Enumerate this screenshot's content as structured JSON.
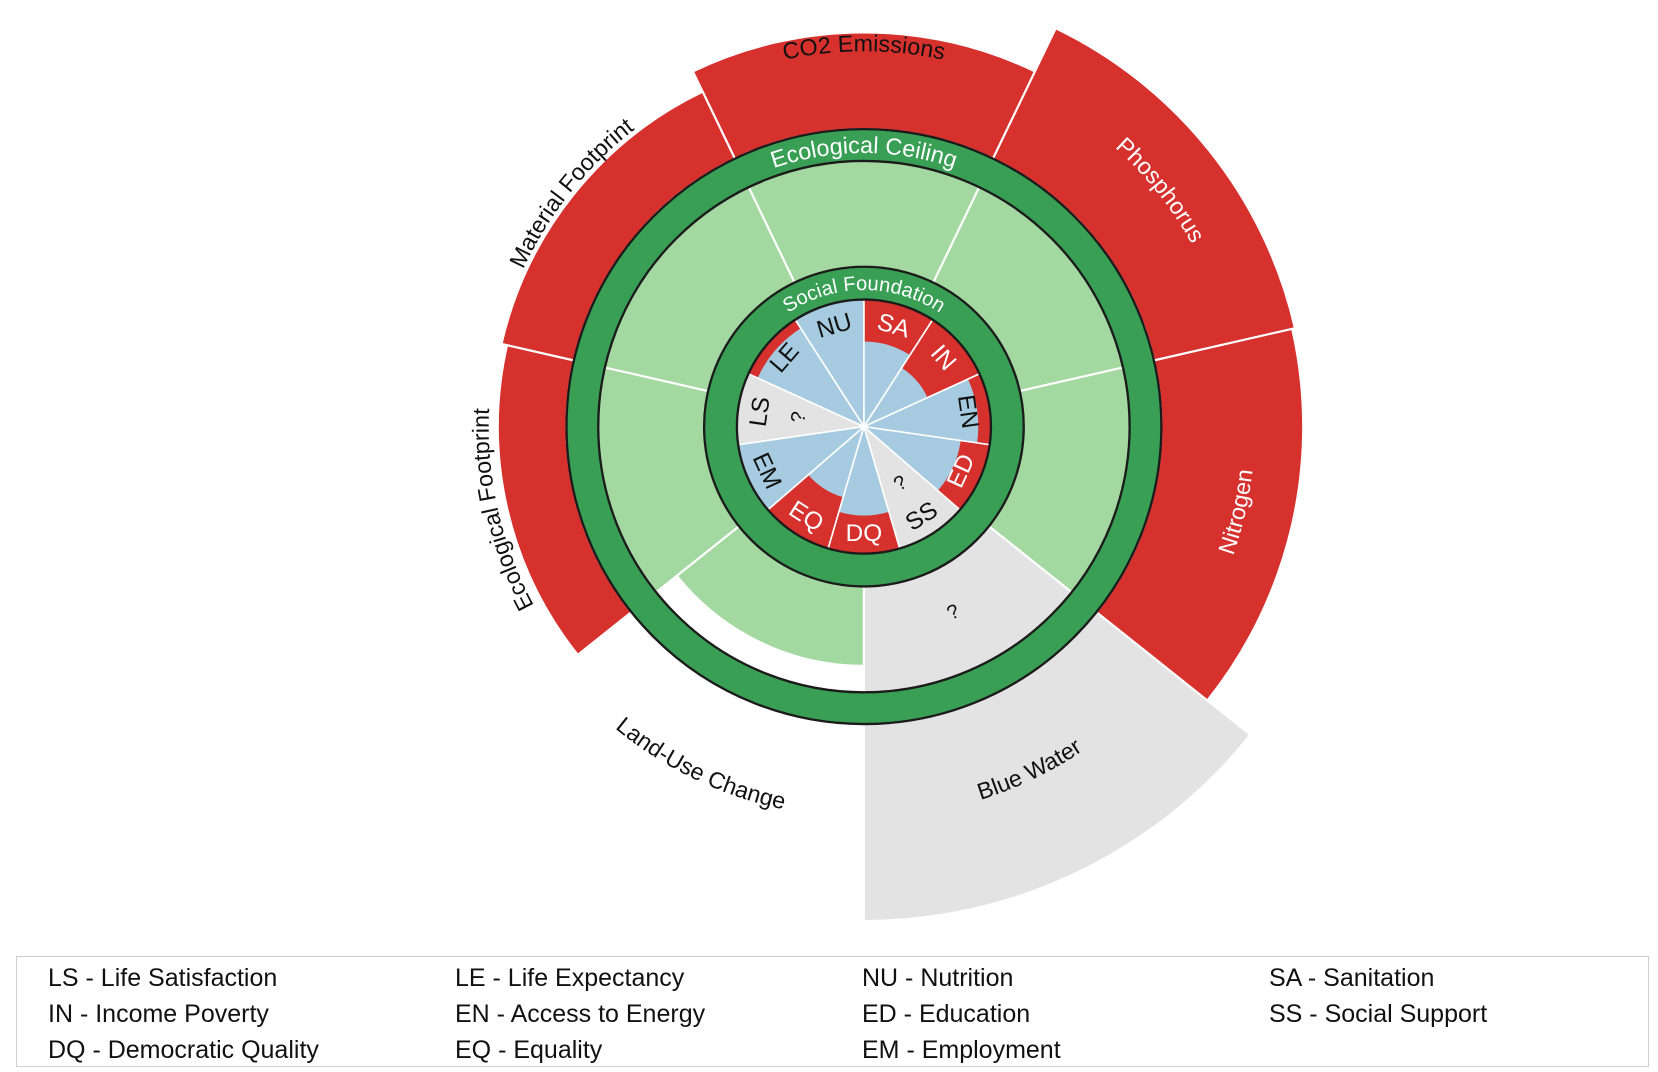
{
  "chart_data": {
    "type": "pie",
    "ceiling_label": "Ecological Ceiling",
    "foundation_label": "Social Foundation",
    "unknown_marker": "?",
    "ecological": [
      {
        "label": "CO2 Emissions",
        "value": 1.4
      },
      {
        "label": "Phosphorus",
        "value": 1.57
      },
      {
        "label": "Nitrogen",
        "value": 1.56
      },
      {
        "label": "Blue Water",
        "value": null
      },
      {
        "label": "Land-Use Change",
        "value": 0.85
      },
      {
        "label": "Ecological Footprint",
        "value": 1.3
      },
      {
        "label": "Material Footprint",
        "value": 1.32
      }
    ],
    "social": [
      {
        "code": "SA",
        "value": 0.67
      },
      {
        "code": "IN",
        "value": 0.55
      },
      {
        "code": "EN",
        "value": 0.9
      },
      {
        "code": "ED",
        "value": 0.77
      },
      {
        "code": "SS",
        "value": null
      },
      {
        "code": "DQ",
        "value": 0.7
      },
      {
        "code": "EQ",
        "value": 0.58
      },
      {
        "code": "EM",
        "value": 1.0
      },
      {
        "code": "LS",
        "value": null
      },
      {
        "code": "LE",
        "value": 0.92
      },
      {
        "code": "NU",
        "value": 1.0
      }
    ]
  },
  "colors": {
    "overshoot": "#d7312e",
    "safe_space": "#a3d9a0",
    "boundary_ring": "#389f55",
    "ring_outline": "#1b1b1b",
    "achieved": "#a6cbe0",
    "shortfall": "#d7312e",
    "no_data": "#e3e3e3",
    "label_dark": "#111111",
    "label_light": "#ffffff"
  },
  "legend": {
    "items": [
      "LS - Life Satisfaction",
      "LE - Life Expectancy",
      "NU - Nutrition",
      "SA - Sanitation",
      "IN - Income Poverty",
      "EN - Access to Energy",
      "ED - Education",
      "SS - Social Support",
      "DQ - Democratic Quality",
      "EQ - Equality",
      "EM - Employment"
    ]
  }
}
